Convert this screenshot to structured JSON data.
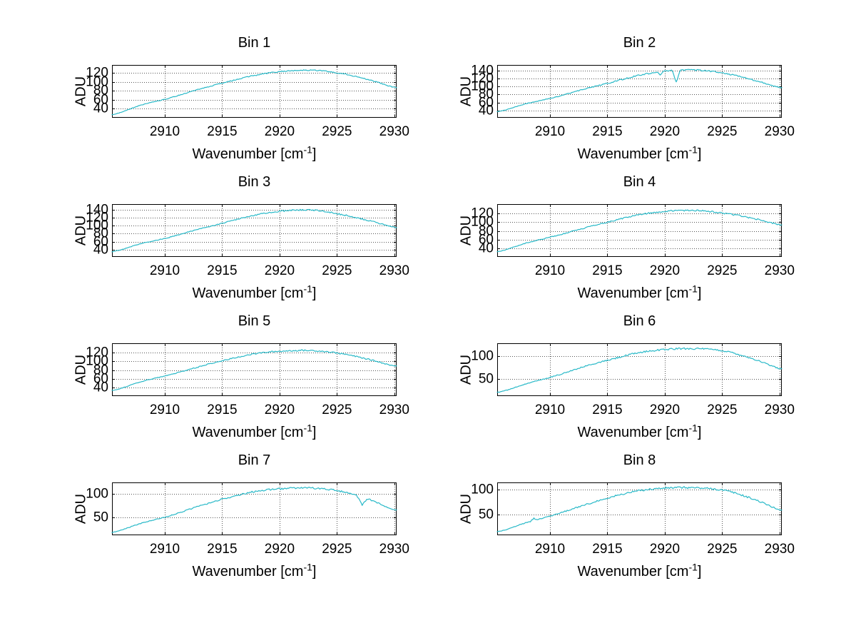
{
  "figure": {
    "background_color": "#ffffff",
    "line_color": "#29b9c8",
    "grid_color": "#555555",
    "axis_color": "#000000",
    "text_color": "#000000"
  },
  "chart_data": [
    {
      "type": "line",
      "title": "Bin 1",
      "xlabel": "Wavenumber [cm⁻¹]",
      "xlabel_parts": {
        "pre": "Wavenumber [cm",
        "sup": "-1",
        "post": "]"
      },
      "ylabel": "ADU",
      "grid": true,
      "legend": "none",
      "xlim": [
        2905.4,
        2930.2
      ],
      "ylim": [
        20,
        138
      ],
      "xticks": [
        2910,
        2915,
        2920,
        2925,
        2930
      ],
      "yticks": [
        40,
        60,
        80,
        100,
        120
      ],
      "x": [
        2905.4,
        2907.9,
        2910.4,
        2912.9,
        2915.4,
        2917.9,
        2920.4,
        2922.9,
        2925.4,
        2927.9,
        2930.4
      ],
      "y": [
        27,
        48,
        64,
        83,
        100,
        115,
        124,
        126,
        119,
        104,
        86
      ],
      "noise": 1.3,
      "dips": []
    },
    {
      "type": "line",
      "title": "Bin 2",
      "xlabel": "Wavenumber [cm⁻¹]",
      "xlabel_parts": {
        "pre": "Wavenumber [cm",
        "sup": "-1",
        "post": "]"
      },
      "ylabel": "ADU",
      "grid": true,
      "legend": "none",
      "xlim": [
        2905.4,
        2930.2
      ],
      "ylim": [
        22,
        154
      ],
      "xticks": [
        2910,
        2915,
        2920,
        2925,
        2930
      ],
      "yticks": [
        40,
        60,
        80,
        100,
        120,
        140
      ],
      "x": [
        2905.4,
        2907.9,
        2910.4,
        2912.9,
        2915.4,
        2917.9,
        2920.4,
        2922.9,
        2925.4,
        2927.9,
        2930.4
      ],
      "y": [
        37,
        57,
        73,
        93,
        111,
        129,
        139,
        141,
        132,
        115,
        96
      ],
      "noise": 1.8,
      "dips": [
        {
          "x": 2921.0,
          "to": 111,
          "width": 0.35
        },
        {
          "x": 2919.6,
          "to": 130,
          "width": 0.25
        }
      ]
    },
    {
      "type": "line",
      "title": "Bin 3",
      "xlabel": "Wavenumber [cm⁻¹]",
      "xlabel_parts": {
        "pre": "Wavenumber [cm",
        "sup": "-1",
        "post": "]"
      },
      "ylabel": "ADU",
      "grid": true,
      "legend": "none",
      "xlim": [
        2905.4,
        2930.2
      ],
      "ylim": [
        22,
        154
      ],
      "xticks": [
        2910,
        2915,
        2920,
        2925,
        2930
      ],
      "yticks": [
        40,
        60,
        80,
        100,
        120,
        140
      ],
      "x": [
        2905.4,
        2907.9,
        2910.4,
        2912.9,
        2915.4,
        2917.9,
        2920.4,
        2922.9,
        2925.4,
        2927.9,
        2930.4
      ],
      "y": [
        35,
        55,
        71,
        91,
        109,
        127,
        137,
        139,
        128,
        112,
        94
      ],
      "noise": 1.8,
      "dips": []
    },
    {
      "type": "line",
      "title": "Bin 4",
      "xlabel": "Wavenumber [cm⁻¹]",
      "xlabel_parts": {
        "pre": "Wavenumber [cm",
        "sup": "-1",
        "post": "]"
      },
      "ylabel": "ADU",
      "grid": true,
      "legend": "none",
      "xlim": [
        2905.4,
        2930.2
      ],
      "ylim": [
        20,
        142
      ],
      "xticks": [
        2910,
        2915,
        2920,
        2925,
        2930
      ],
      "yticks": [
        40,
        60,
        80,
        100,
        120
      ],
      "x": [
        2905.4,
        2907.9,
        2910.4,
        2912.9,
        2915.4,
        2917.9,
        2920.4,
        2922.9,
        2925.4,
        2927.9,
        2930.4
      ],
      "y": [
        32,
        52,
        68,
        86,
        103,
        118,
        126,
        127,
        120,
        108,
        93
      ],
      "noise": 1.8,
      "dips": []
    },
    {
      "type": "line",
      "title": "Bin 5",
      "xlabel": "Wavenumber [cm⁻¹]",
      "xlabel_parts": {
        "pre": "Wavenumber [cm",
        "sup": "-1",
        "post": "]"
      },
      "ylabel": "ADU",
      "grid": true,
      "legend": "none",
      "xlim": [
        2905.4,
        2930.2
      ],
      "ylim": [
        20,
        142
      ],
      "xticks": [
        2910,
        2915,
        2920,
        2925,
        2930
      ],
      "yticks": [
        40,
        60,
        80,
        100,
        120
      ],
      "x": [
        2905.4,
        2907.9,
        2910.4,
        2912.9,
        2915.4,
        2917.9,
        2920.4,
        2922.9,
        2925.4,
        2927.9,
        2930.4
      ],
      "y": [
        33,
        53,
        69,
        87,
        104,
        118,
        124,
        125,
        118,
        104,
        88
      ],
      "noise": 1.6,
      "dips": [
        {
          "x": 2913.9,
          "to": 96,
          "width": 0.3
        }
      ]
    },
    {
      "type": "line",
      "title": "Bin 6",
      "xlabel": "Wavenumber [cm⁻¹]",
      "xlabel_parts": {
        "pre": "Wavenumber [cm",
        "sup": "-1",
        "post": "]"
      },
      "ylabel": "ADU",
      "grid": true,
      "legend": "none",
      "xlim": [
        2905.4,
        2930.2
      ],
      "ylim": [
        12,
        128
      ],
      "xticks": [
        2910,
        2915,
        2920,
        2925,
        2930
      ],
      "yticks": [
        50,
        100
      ],
      "x": [
        2905.4,
        2907.9,
        2910.4,
        2912.9,
        2915.4,
        2917.9,
        2920.4,
        2922.9,
        2925.4,
        2927.9,
        2930.4
      ],
      "y": [
        20,
        39,
        56,
        76,
        93,
        108,
        115,
        116,
        110,
        92,
        70
      ],
      "noise": 2.0,
      "dips": []
    },
    {
      "type": "line",
      "title": "Bin 7",
      "xlabel": "Wavenumber [cm⁻¹]",
      "xlabel_parts": {
        "pre": "Wavenumber [cm",
        "sup": "-1",
        "post": "]"
      },
      "ylabel": "ADU",
      "grid": true,
      "legend": "none",
      "xlim": [
        2905.4,
        2930.2
      ],
      "ylim": [
        12,
        124
      ],
      "xticks": [
        2910,
        2915,
        2920,
        2925,
        2930
      ],
      "yticks": [
        50,
        100
      ],
      "x": [
        2905.4,
        2907.9,
        2910.4,
        2912.9,
        2915.4,
        2917.9,
        2920.4,
        2922.9,
        2925.4,
        2927.9,
        2930.4
      ],
      "y": [
        18,
        37,
        53,
        73,
        91,
        105,
        111,
        112,
        105,
        87,
        64
      ],
      "noise": 1.8,
      "dips": [
        {
          "x": 2927.2,
          "to": 76,
          "width": 0.45
        }
      ]
    },
    {
      "type": "line",
      "title": "Bin 8",
      "xlabel": "Wavenumber [cm⁻¹]",
      "xlabel_parts": {
        "pre": "Wavenumber [cm",
        "sup": "-1",
        "post": "]"
      },
      "ylabel": "ADU",
      "grid": true,
      "legend": "none",
      "xlim": [
        2905.4,
        2930.2
      ],
      "ylim": [
        8,
        114
      ],
      "xticks": [
        2910,
        2915,
        2920,
        2925,
        2930
      ],
      "yticks": [
        50,
        100
      ],
      "x": [
        2905.4,
        2907.9,
        2910.4,
        2912.9,
        2915.4,
        2917.9,
        2920.4,
        2922.9,
        2925.4,
        2927.9,
        2930.4
      ],
      "y": [
        15,
        33,
        49,
        68,
        85,
        98,
        103,
        103,
        97,
        79,
        57
      ],
      "noise": 2.0,
      "dips": [
        {
          "x": 2908.6,
          "to": 42,
          "width": 0.3
        }
      ]
    }
  ]
}
